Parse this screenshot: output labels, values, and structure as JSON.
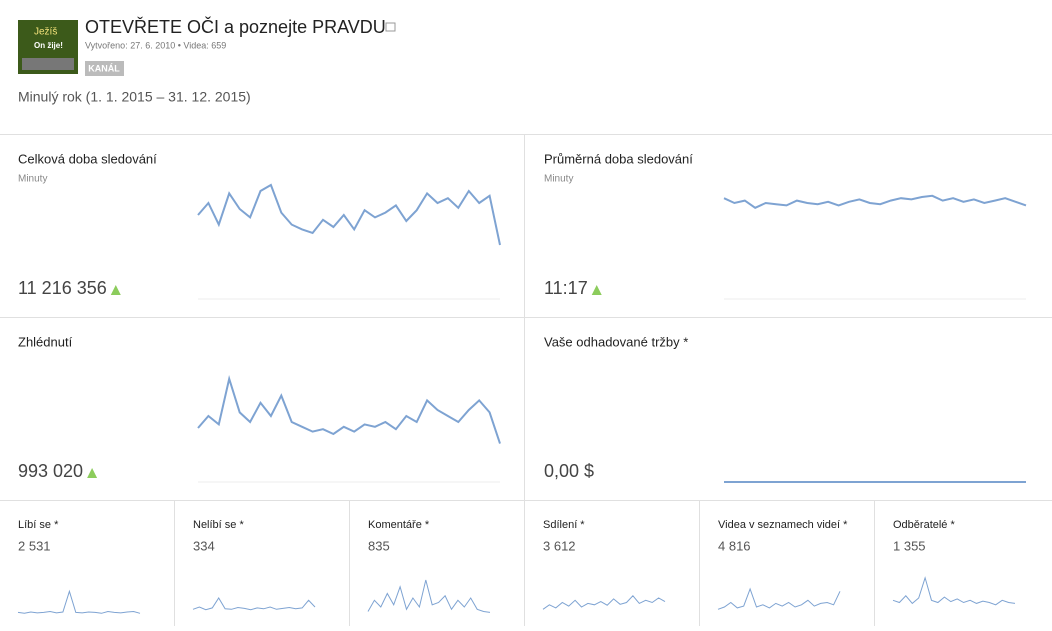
{
  "header": {
    "thumbnail": {
      "line1": "Ježíš",
      "line2": "On žije!"
    },
    "title": "OTEVŘETE OČI a poznejte PRAVDU",
    "meta": "Vytvořeno: 27. 6. 2010 • Videa: 659",
    "badge": "KANÁL",
    "period": "Minulý rok (1. 1. 2015 – 31. 12. 2015)"
  },
  "cards": [
    {
      "title": "Celková doba sledování",
      "subtitle": "Minuty",
      "value": "11 216 356",
      "trend": "up",
      "spark": [
        70,
        80,
        62,
        88,
        75,
        68,
        90,
        95,
        72,
        62,
        58,
        55,
        66,
        60,
        70,
        58,
        74,
        68,
        72,
        78,
        65,
        74,
        88,
        80,
        84,
        76,
        90,
        80,
        86,
        45
      ]
    },
    {
      "title": "Průměrná doba sledování",
      "subtitle": "Minuty",
      "value": "11:17",
      "trend": "up",
      "spark": [
        84,
        80,
        82,
        76,
        80,
        79,
        78,
        82,
        80,
        79,
        81,
        78,
        81,
        83,
        80,
        79,
        82,
        84,
        83,
        85,
        86,
        82,
        84,
        81,
        83,
        80,
        82,
        84,
        81,
        78
      ]
    },
    {
      "title": "Zhlédnutí",
      "value": "993 020",
      "trend": "up",
      "spark": [
        45,
        55,
        48,
        86,
        58,
        50,
        66,
        55,
        72,
        50,
        46,
        42,
        44,
        40,
        46,
        42,
        48,
        46,
        50,
        44,
        55,
        50,
        68,
        60,
        55,
        50,
        60,
        68,
        58,
        32
      ]
    },
    {
      "title": "Vaše odhadované tržby *",
      "value": "0,00 $",
      "spark": [
        0,
        0,
        0,
        0,
        0,
        0,
        0,
        0,
        0,
        0,
        0,
        0,
        0,
        0,
        0,
        0,
        0,
        0,
        0,
        0
      ]
    }
  ],
  "metrics": [
    {
      "title": "Líbí se *",
      "value": "2 531",
      "spark": [
        8,
        6,
        9,
        7,
        8,
        10,
        7,
        9,
        55,
        8,
        7,
        9,
        8,
        6,
        10,
        8,
        7,
        9,
        10,
        6
      ]
    },
    {
      "title": "Nelíbí se *",
      "value": "334",
      "spark": [
        15,
        20,
        14,
        18,
        40,
        16,
        15,
        19,
        17,
        14,
        18,
        16,
        20,
        15,
        17,
        19,
        16,
        18,
        35,
        20
      ]
    },
    {
      "title": "Komentáře *",
      "value": "835",
      "spark": [
        10,
        35,
        20,
        50,
        25,
        65,
        15,
        40,
        20,
        80,
        25,
        30,
        45,
        15,
        35,
        20,
        40,
        15,
        10,
        8
      ]
    },
    {
      "title": "Sdílení *",
      "value": "3 612",
      "spark": [
        15,
        25,
        18,
        30,
        22,
        35,
        20,
        28,
        25,
        32,
        24,
        38,
        26,
        30,
        45,
        28,
        35,
        30,
        40,
        32
      ]
    },
    {
      "title": "Videa v seznamech videí *",
      "value": "4 816",
      "spark": [
        15,
        20,
        30,
        18,
        22,
        60,
        20,
        25,
        18,
        28,
        22,
        30,
        20,
        25,
        35,
        22,
        28,
        30,
        25,
        55
      ]
    },
    {
      "title": "Odběratelé *",
      "value": "1 355",
      "spark": [
        35,
        30,
        45,
        28,
        40,
        85,
        35,
        30,
        42,
        32,
        38,
        30,
        35,
        28,
        33,
        30,
        25,
        35,
        30,
        28
      ]
    }
  ]
}
